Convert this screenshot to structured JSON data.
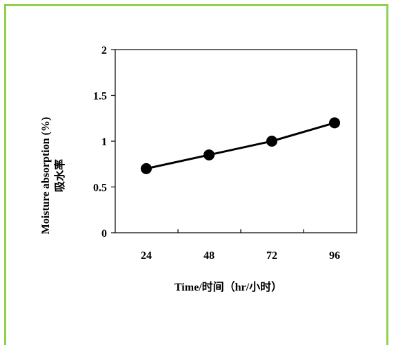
{
  "chart_data": {
    "type": "line",
    "x": [
      24,
      48,
      72,
      96
    ],
    "y": [
      0.7,
      0.85,
      1.0,
      1.2
    ],
    "xlabel": "Time/时间（hr/小时）",
    "ylabel": "Moisture absorption (%)",
    "ylabel_cn": "吸水率",
    "ylim": [
      0,
      2
    ],
    "yticks": [
      "0",
      "0.5",
      "1",
      "1.5",
      "2"
    ],
    "xticks": [
      "24",
      "48",
      "72",
      "96"
    ],
    "grid": false,
    "colors": {
      "frame": "#8fd14f",
      "line": "#000000"
    }
  }
}
